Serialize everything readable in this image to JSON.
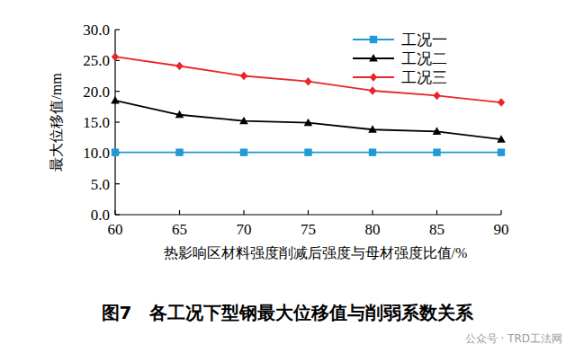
{
  "chart_data": {
    "type": "line",
    "title": "图7　各工况下型钢最大位移值与削弱系数关系",
    "x_label": "热影响区材料强度削减后强度与母材强度比值/%",
    "y_label": "最大位移值/mm",
    "annotations": [
      "公众号 · TRD工法网"
    ],
    "x": [
      60,
      65,
      70,
      75,
      80,
      85,
      90
    ],
    "series": [
      {
        "name": "工况一",
        "color": "#1f9ad6",
        "marker": "square",
        "values": [
          10.1,
          10.1,
          10.1,
          10.1,
          10.1,
          10.1,
          10.1
        ]
      },
      {
        "name": "工况二",
        "color": "#000000",
        "marker": "triangle",
        "values": [
          18.5,
          16.2,
          15.2,
          14.9,
          13.8,
          13.5,
          12.2
        ]
      },
      {
        "name": "工况三",
        "color": "#e8262a",
        "marker": "diamond",
        "values": [
          25.6,
          24.1,
          22.5,
          21.6,
          20.1,
          19.3,
          18.2
        ]
      }
    ],
    "xlim": [
      60,
      90
    ],
    "xticks": [
      60,
      65,
      70,
      75,
      80,
      85,
      90
    ],
    "ylim": [
      0,
      30
    ],
    "yticks": [
      {
        "value": 0,
        "label": "0.0"
      },
      {
        "value": 5,
        "label": "5.0"
      },
      {
        "value": 10,
        "label": "10.0"
      },
      {
        "value": 15,
        "label": "15.0"
      },
      {
        "value": 20,
        "label": "20.0"
      },
      {
        "value": 25,
        "label": "25.0"
      },
      {
        "value": 30,
        "label": "30.0"
      }
    ],
    "grid": false,
    "legend": "upper-right"
  }
}
